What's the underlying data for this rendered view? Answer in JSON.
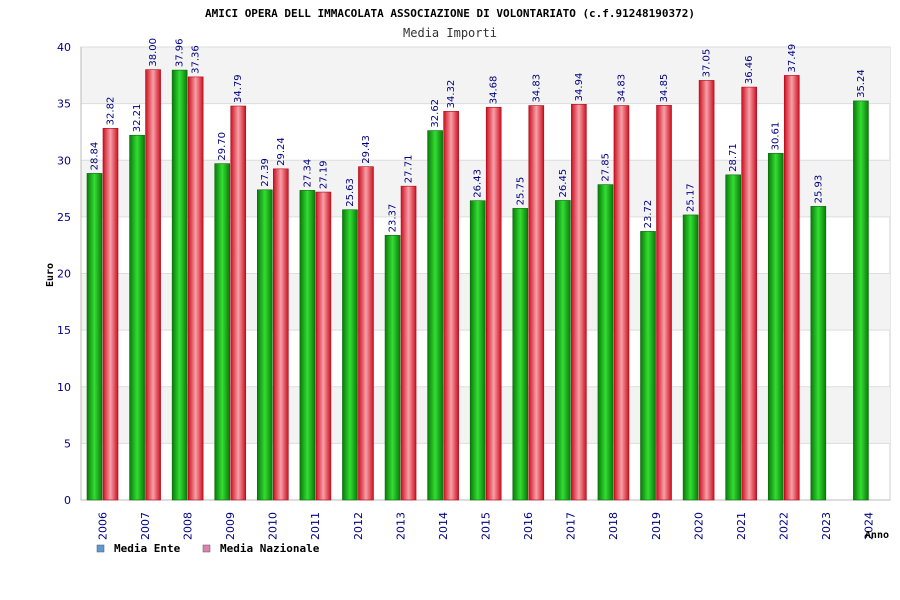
{
  "chart_data": {
    "type": "bar",
    "title": "AMICI OPERA DELL IMMACOLATA ASSOCIAZIONE DI VOLONTARIATO (c.f.91248190372)",
    "subtitle": "Media Importi",
    "xlabel": "Anno",
    "ylabel": "Euro",
    "ylim": [
      0,
      40
    ],
    "yticks": [
      0,
      5,
      10,
      15,
      20,
      25,
      30,
      35,
      40
    ],
    "grid": true,
    "legend_position": "bottom-left",
    "categories": [
      "2006",
      "2007",
      "2008",
      "2009",
      "2010",
      "2011",
      "2012",
      "2013",
      "2014",
      "2015",
      "2016",
      "2017",
      "2018",
      "2019",
      "2020",
      "2021",
      "2022",
      "2023",
      "2024"
    ],
    "series": [
      {
        "name": "Media Ente",
        "legend_color": "#5b9bd5",
        "color": "#1fb21f",
        "values": [
          28.84,
          32.21,
          37.96,
          29.7,
          27.39,
          27.34,
          25.63,
          23.37,
          32.62,
          26.43,
          25.75,
          26.45,
          27.85,
          23.72,
          25.17,
          28.71,
          30.61,
          25.93,
          35.24
        ],
        "labels": [
          "28.84",
          "32.21",
          "37.96",
          "29.70",
          "27.39",
          "27.34",
          "25.63",
          "23.37",
          "32.62",
          "26.43",
          "25.75",
          "26.45",
          "27.85",
          "23.72",
          "25.17",
          "28.71",
          "30.61",
          "25.93",
          "35.24"
        ]
      },
      {
        "name": "Media Nazionale",
        "legend_color": "#e080b0",
        "color": "#e8323c",
        "values": [
          32.82,
          38.0,
          37.36,
          34.79,
          29.24,
          27.19,
          29.43,
          27.71,
          34.32,
          34.68,
          34.83,
          34.94,
          34.83,
          34.85,
          37.05,
          36.46,
          37.49,
          null,
          null
        ],
        "labels": [
          "32.82",
          "38.00",
          "37.36",
          "34.79",
          "29.24",
          "27.19",
          "29.43",
          "27.71",
          "34.32",
          "34.68",
          "34.83",
          "34.94",
          "34.83",
          "34.85",
          "37.05",
          "36.46",
          "37.49",
          "",
          ""
        ]
      }
    ]
  }
}
